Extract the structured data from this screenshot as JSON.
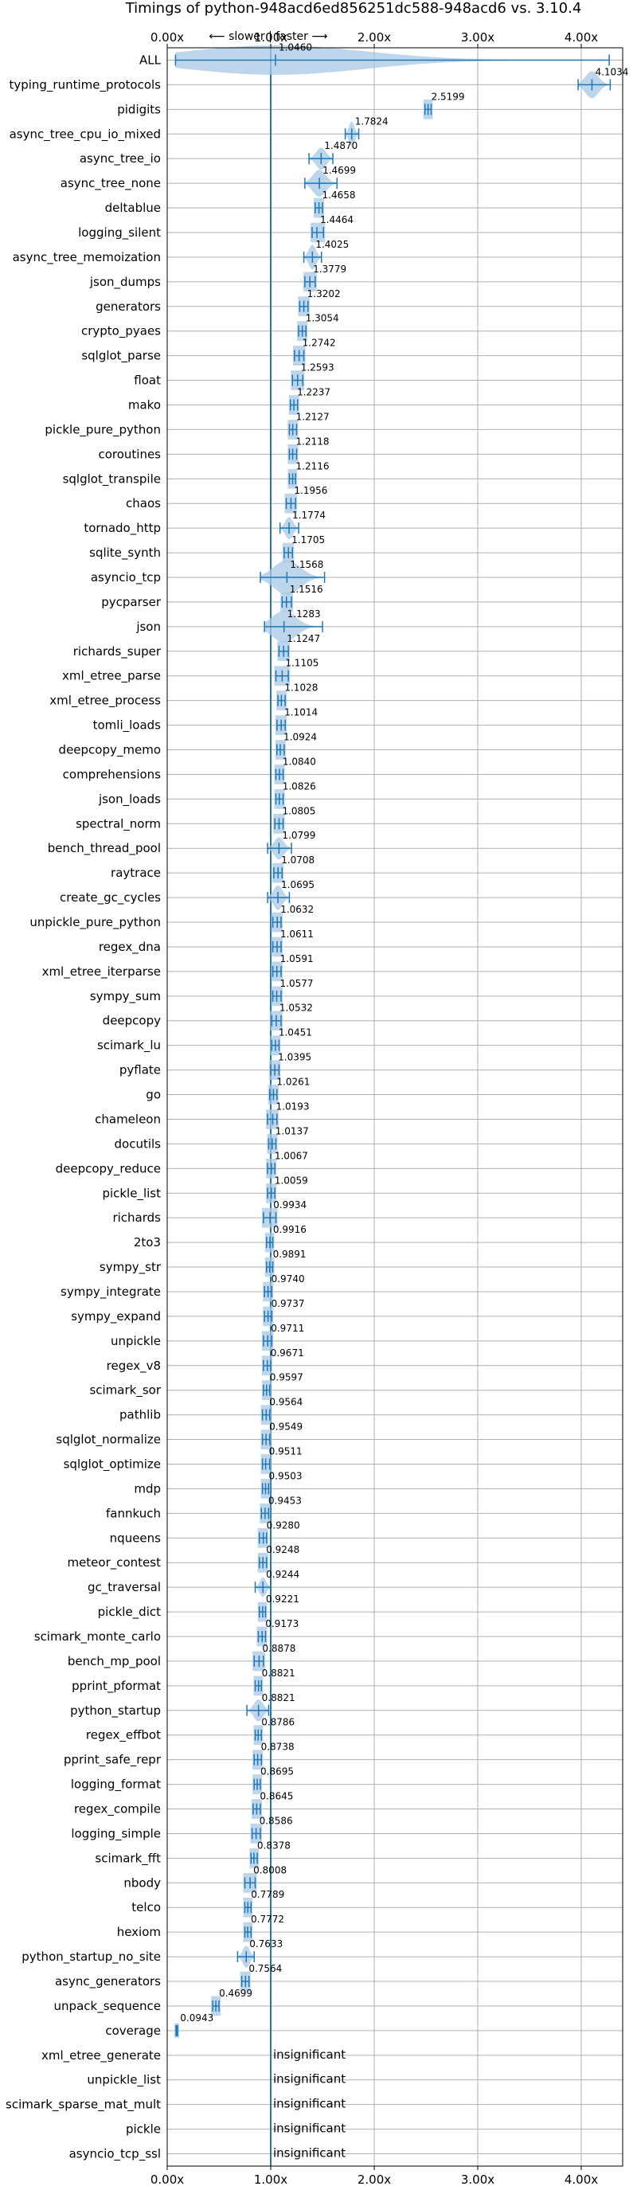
{
  "chart_data": {
    "type": "violin",
    "title": "Timings of python-948acd6ed856251dc588-948acd6 vs. 3.10.4",
    "direction_annotation": "⟵ slower | faster ⟶",
    "xlim": [
      0,
      4.4
    ],
    "reference_x": 1.0,
    "xticks": [
      {
        "value": 0,
        "label": "0.00x"
      },
      {
        "value": 1,
        "label": "1.00x"
      },
      {
        "value": 2,
        "label": "2.00x"
      },
      {
        "value": 3,
        "label": "3.00x"
      },
      {
        "value": 4,
        "label": "4.00x"
      }
    ],
    "insignificant_label": "insignificant",
    "colors": {
      "violin": "#a8c8e4",
      "line": "#1f77b4",
      "median": "#d62728",
      "grid": "#b0b0b0"
    },
    "benchmarks": [
      {
        "name": "ALL",
        "value": 1.046,
        "label": "1.0460",
        "lo": 0.08,
        "hi": 4.27,
        "width": 0.6,
        "sig": true
      },
      {
        "name": "typing_runtime_protocols",
        "value": 4.1034,
        "label": "4.1034",
        "lo": 3.97,
        "hi": 4.28,
        "width": 0.55,
        "sig": true
      },
      {
        "name": "pidigits",
        "value": 2.5199,
        "label": "2.5199",
        "lo": 2.49,
        "hi": 2.55,
        "width": 0.4,
        "sig": true
      },
      {
        "name": "async_tree_cpu_io_mixed",
        "value": 1.7824,
        "label": "1.7824",
        "lo": 1.72,
        "hi": 1.85,
        "width": 0.5,
        "sig": true
      },
      {
        "name": "async_tree_io",
        "value": 1.487,
        "label": "1.4870",
        "lo": 1.37,
        "hi": 1.6,
        "width": 0.45,
        "sig": true
      },
      {
        "name": "async_tree_none",
        "value": 1.4699,
        "label": "1.4699",
        "lo": 1.33,
        "hi": 1.64,
        "width": 0.55,
        "sig": true
      },
      {
        "name": "deltablue",
        "value": 1.4658,
        "label": "1.4658",
        "lo": 1.43,
        "hi": 1.5,
        "width": 0.4,
        "sig": true
      },
      {
        "name": "logging_silent",
        "value": 1.4464,
        "label": "1.4464",
        "lo": 1.4,
        "hi": 1.51,
        "width": 0.4,
        "sig": true
      },
      {
        "name": "async_tree_memoization",
        "value": 1.4025,
        "label": "1.4025",
        "lo": 1.32,
        "hi": 1.49,
        "width": 0.5,
        "sig": true
      },
      {
        "name": "json_dumps",
        "value": 1.3779,
        "label": "1.3779",
        "lo": 1.33,
        "hi": 1.43,
        "width": 0.4,
        "sig": true
      },
      {
        "name": "generators",
        "value": 1.3202,
        "label": "1.3202",
        "lo": 1.28,
        "hi": 1.36,
        "width": 0.4,
        "sig": true
      },
      {
        "name": "crypto_pyaes",
        "value": 1.3054,
        "label": "1.3054",
        "lo": 1.27,
        "hi": 1.34,
        "width": 0.4,
        "sig": true
      },
      {
        "name": "sqlglot_parse",
        "value": 1.2742,
        "label": "1.2742",
        "lo": 1.23,
        "hi": 1.32,
        "width": 0.4,
        "sig": true
      },
      {
        "name": "float",
        "value": 1.2593,
        "label": "1.2593",
        "lo": 1.21,
        "hi": 1.31,
        "width": 0.4,
        "sig": true
      },
      {
        "name": "mako",
        "value": 1.2237,
        "label": "1.2237",
        "lo": 1.19,
        "hi": 1.26,
        "width": 0.4,
        "sig": true
      },
      {
        "name": "pickle_pure_python",
        "value": 1.2127,
        "label": "1.2127",
        "lo": 1.18,
        "hi": 1.25,
        "width": 0.4,
        "sig": true
      },
      {
        "name": "coroutines",
        "value": 1.2118,
        "label": "1.2118",
        "lo": 1.18,
        "hi": 1.25,
        "width": 0.4,
        "sig": true
      },
      {
        "name": "sqlglot_transpile",
        "value": 1.2116,
        "label": "1.2116",
        "lo": 1.18,
        "hi": 1.24,
        "width": 0.4,
        "sig": true
      },
      {
        "name": "chaos",
        "value": 1.1956,
        "label": "1.1956",
        "lo": 1.15,
        "hi": 1.24,
        "width": 0.4,
        "sig": true
      },
      {
        "name": "tornado_http",
        "value": 1.1774,
        "label": "1.1774",
        "lo": 1.09,
        "hi": 1.27,
        "width": 0.45,
        "sig": true
      },
      {
        "name": "sqlite_synth",
        "value": 1.1705,
        "label": "1.1705",
        "lo": 1.13,
        "hi": 1.21,
        "width": 0.4,
        "sig": true
      },
      {
        "name": "asyncio_tcp",
        "value": 1.1568,
        "label": "1.1568",
        "lo": 0.9,
        "hi": 1.52,
        "width": 0.7,
        "sig": true
      },
      {
        "name": "pycparser",
        "value": 1.1516,
        "label": "1.1516",
        "lo": 1.11,
        "hi": 1.2,
        "width": 0.4,
        "sig": true
      },
      {
        "name": "json",
        "value": 1.1283,
        "label": "1.1283",
        "lo": 0.94,
        "hi": 1.5,
        "width": 0.65,
        "sig": true
      },
      {
        "name": "richards_super",
        "value": 1.1247,
        "label": "1.1247",
        "lo": 1.08,
        "hi": 1.17,
        "width": 0.4,
        "sig": true
      },
      {
        "name": "xml_etree_parse",
        "value": 1.1105,
        "label": "1.1105",
        "lo": 1.05,
        "hi": 1.17,
        "width": 0.4,
        "sig": true
      },
      {
        "name": "xml_etree_process",
        "value": 1.1028,
        "label": "1.1028",
        "lo": 1.07,
        "hi": 1.14,
        "width": 0.4,
        "sig": true
      },
      {
        "name": "tomli_loads",
        "value": 1.1014,
        "label": "1.1014",
        "lo": 1.06,
        "hi": 1.14,
        "width": 0.4,
        "sig": true
      },
      {
        "name": "deepcopy_memo",
        "value": 1.0924,
        "label": "1.0924",
        "lo": 1.06,
        "hi": 1.13,
        "width": 0.4,
        "sig": true
      },
      {
        "name": "comprehensions",
        "value": 1.084,
        "label": "1.0840",
        "lo": 1.05,
        "hi": 1.12,
        "width": 0.4,
        "sig": true
      },
      {
        "name": "json_loads",
        "value": 1.0826,
        "label": "1.0826",
        "lo": 1.05,
        "hi": 1.12,
        "width": 0.4,
        "sig": true
      },
      {
        "name": "spectral_norm",
        "value": 1.0805,
        "label": "1.0805",
        "lo": 1.04,
        "hi": 1.12,
        "width": 0.4,
        "sig": true
      },
      {
        "name": "bench_thread_pool",
        "value": 1.0799,
        "label": "1.0799",
        "lo": 0.97,
        "hi": 1.2,
        "width": 0.45,
        "sig": true
      },
      {
        "name": "raytrace",
        "value": 1.0708,
        "label": "1.0708",
        "lo": 1.03,
        "hi": 1.11,
        "width": 0.4,
        "sig": true
      },
      {
        "name": "create_gc_cycles",
        "value": 1.0695,
        "label": "1.0695",
        "lo": 0.97,
        "hi": 1.18,
        "width": 0.5,
        "sig": true
      },
      {
        "name": "unpickle_pure_python",
        "value": 1.0632,
        "label": "1.0632",
        "lo": 1.02,
        "hi": 1.1,
        "width": 0.4,
        "sig": true
      },
      {
        "name": "regex_dna",
        "value": 1.0611,
        "label": "1.0611",
        "lo": 1.02,
        "hi": 1.1,
        "width": 0.4,
        "sig": true
      },
      {
        "name": "xml_etree_iterparse",
        "value": 1.0591,
        "label": "1.0591",
        "lo": 1.02,
        "hi": 1.1,
        "width": 0.4,
        "sig": true
      },
      {
        "name": "sympy_sum",
        "value": 1.0577,
        "label": "1.0577",
        "lo": 1.02,
        "hi": 1.1,
        "width": 0.4,
        "sig": true
      },
      {
        "name": "deepcopy",
        "value": 1.0532,
        "label": "1.0532",
        "lo": 1.01,
        "hi": 1.1,
        "width": 0.4,
        "sig": true
      },
      {
        "name": "scimark_lu",
        "value": 1.0451,
        "label": "1.0451",
        "lo": 1.01,
        "hi": 1.08,
        "width": 0.4,
        "sig": true
      },
      {
        "name": "pyflate",
        "value": 1.0395,
        "label": "1.0395",
        "lo": 1.0,
        "hi": 1.08,
        "width": 0.4,
        "sig": true
      },
      {
        "name": "go",
        "value": 1.0261,
        "label": "1.0261",
        "lo": 0.99,
        "hi": 1.06,
        "width": 0.4,
        "sig": true
      },
      {
        "name": "chameleon",
        "value": 1.0193,
        "label": "1.0193",
        "lo": 0.97,
        "hi": 1.06,
        "width": 0.4,
        "sig": true
      },
      {
        "name": "docutils",
        "value": 1.0137,
        "label": "1.0137",
        "lo": 0.98,
        "hi": 1.05,
        "width": 0.4,
        "sig": true
      },
      {
        "name": "deepcopy_reduce",
        "value": 1.0067,
        "label": "1.0067",
        "lo": 0.97,
        "hi": 1.04,
        "width": 0.4,
        "sig": true
      },
      {
        "name": "pickle_list",
        "value": 1.0059,
        "label": "1.0059",
        "lo": 0.97,
        "hi": 1.04,
        "width": 0.4,
        "sig": true
      },
      {
        "name": "richards",
        "value": 0.9934,
        "label": "0.9934",
        "lo": 0.93,
        "hi": 1.05,
        "width": 0.4,
        "sig": true
      },
      {
        "name": "2to3",
        "value": 0.9916,
        "label": "0.9916",
        "lo": 0.96,
        "hi": 1.02,
        "width": 0.4,
        "sig": true
      },
      {
        "name": "sympy_str",
        "value": 0.9891,
        "label": "0.9891",
        "lo": 0.96,
        "hi": 1.02,
        "width": 0.4,
        "sig": true
      },
      {
        "name": "sympy_integrate",
        "value": 0.974,
        "label": "0.9740",
        "lo": 0.94,
        "hi": 1.01,
        "width": 0.4,
        "sig": true
      },
      {
        "name": "sympy_expand",
        "value": 0.9737,
        "label": "0.9737",
        "lo": 0.94,
        "hi": 1.01,
        "width": 0.4,
        "sig": true
      },
      {
        "name": "unpickle",
        "value": 0.9711,
        "label": "0.9711",
        "lo": 0.93,
        "hi": 1.01,
        "width": 0.4,
        "sig": true
      },
      {
        "name": "regex_v8",
        "value": 0.9671,
        "label": "0.9671",
        "lo": 0.93,
        "hi": 1.0,
        "width": 0.4,
        "sig": true
      },
      {
        "name": "scimark_sor",
        "value": 0.9597,
        "label": "0.9597",
        "lo": 0.93,
        "hi": 0.99,
        "width": 0.4,
        "sig": true
      },
      {
        "name": "pathlib",
        "value": 0.9564,
        "label": "0.9564",
        "lo": 0.92,
        "hi": 0.99,
        "width": 0.4,
        "sig": true
      },
      {
        "name": "sqlglot_normalize",
        "value": 0.9549,
        "label": "0.9549",
        "lo": 0.92,
        "hi": 0.99,
        "width": 0.4,
        "sig": true
      },
      {
        "name": "sqlglot_optimize",
        "value": 0.9511,
        "label": "0.9511",
        "lo": 0.92,
        "hi": 0.99,
        "width": 0.4,
        "sig": true
      },
      {
        "name": "mdp",
        "value": 0.9503,
        "label": "0.9503",
        "lo": 0.92,
        "hi": 0.98,
        "width": 0.4,
        "sig": true
      },
      {
        "name": "fannkuch",
        "value": 0.9453,
        "label": "0.9453",
        "lo": 0.91,
        "hi": 0.98,
        "width": 0.4,
        "sig": true
      },
      {
        "name": "nqueens",
        "value": 0.928,
        "label": "0.9280",
        "lo": 0.89,
        "hi": 0.96,
        "width": 0.4,
        "sig": true
      },
      {
        "name": "meteor_contest",
        "value": 0.9248,
        "label": "0.9248",
        "lo": 0.89,
        "hi": 0.96,
        "width": 0.4,
        "sig": true
      },
      {
        "name": "gc_traversal",
        "value": 0.9244,
        "label": "0.9244",
        "lo": 0.85,
        "hi": 1.0,
        "width": 0.4,
        "sig": true
      },
      {
        "name": "pickle_dict",
        "value": 0.9221,
        "label": "0.9221",
        "lo": 0.89,
        "hi": 0.95,
        "width": 0.4,
        "sig": true
      },
      {
        "name": "scimark_monte_carlo",
        "value": 0.9173,
        "label": "0.9173",
        "lo": 0.88,
        "hi": 0.95,
        "width": 0.4,
        "sig": true
      },
      {
        "name": "bench_mp_pool",
        "value": 0.8878,
        "label": "0.8878",
        "lo": 0.84,
        "hi": 0.93,
        "width": 0.4,
        "sig": true
      },
      {
        "name": "pprint_pformat",
        "value": 0.8821,
        "label": "0.8821",
        "lo": 0.85,
        "hi": 0.91,
        "width": 0.4,
        "sig": true
      },
      {
        "name": "python_startup",
        "value": 0.8821,
        "label": "0.8821",
        "lo": 0.77,
        "hi": 0.98,
        "width": 0.45,
        "sig": true
      },
      {
        "name": "regex_effbot",
        "value": 0.8786,
        "label": "0.8786",
        "lo": 0.85,
        "hi": 0.91,
        "width": 0.4,
        "sig": true
      },
      {
        "name": "pprint_safe_repr",
        "value": 0.8738,
        "label": "0.8738",
        "lo": 0.84,
        "hi": 0.91,
        "width": 0.4,
        "sig": true
      },
      {
        "name": "logging_format",
        "value": 0.8695,
        "label": "0.8695",
        "lo": 0.84,
        "hi": 0.9,
        "width": 0.4,
        "sig": true
      },
      {
        "name": "regex_compile",
        "value": 0.8645,
        "label": "0.8645",
        "lo": 0.83,
        "hi": 0.9,
        "width": 0.4,
        "sig": true
      },
      {
        "name": "logging_simple",
        "value": 0.8586,
        "label": "0.8586",
        "lo": 0.82,
        "hi": 0.9,
        "width": 0.4,
        "sig": true
      },
      {
        "name": "scimark_fft",
        "value": 0.8378,
        "label": "0.8378",
        "lo": 0.81,
        "hi": 0.87,
        "width": 0.4,
        "sig": true
      },
      {
        "name": "nbody",
        "value": 0.8008,
        "label": "0.8008",
        "lo": 0.75,
        "hi": 0.85,
        "width": 0.4,
        "sig": true
      },
      {
        "name": "telco",
        "value": 0.7789,
        "label": "0.7789",
        "lo": 0.75,
        "hi": 0.81,
        "width": 0.4,
        "sig": true
      },
      {
        "name": "hexiom",
        "value": 0.7772,
        "label": "0.7772",
        "lo": 0.75,
        "hi": 0.81,
        "width": 0.4,
        "sig": true
      },
      {
        "name": "python_startup_no_site",
        "value": 0.7633,
        "label": "0.7633",
        "lo": 0.68,
        "hi": 0.84,
        "width": 0.45,
        "sig": true
      },
      {
        "name": "async_generators",
        "value": 0.7564,
        "label": "0.7564",
        "lo": 0.72,
        "hi": 0.79,
        "width": 0.4,
        "sig": true
      },
      {
        "name": "unpack_sequence",
        "value": 0.4699,
        "label": "0.4699",
        "lo": 0.44,
        "hi": 0.5,
        "width": 0.4,
        "sig": true
      },
      {
        "name": "coverage",
        "value": 0.0943,
        "label": "0.0943",
        "lo": 0.085,
        "hi": 0.1,
        "width": 0.3,
        "sig": true
      },
      {
        "name": "xml_etree_generate",
        "value": 1.0,
        "label": "",
        "lo": 1.0,
        "hi": 1.0,
        "width": 0,
        "sig": false
      },
      {
        "name": "unpickle_list",
        "value": 1.0,
        "label": "",
        "lo": 1.0,
        "hi": 1.0,
        "width": 0,
        "sig": false
      },
      {
        "name": "scimark_sparse_mat_mult",
        "value": 1.0,
        "label": "",
        "lo": 1.0,
        "hi": 1.0,
        "width": 0,
        "sig": false
      },
      {
        "name": "pickle",
        "value": 1.0,
        "label": "",
        "lo": 1.0,
        "hi": 1.0,
        "width": 0,
        "sig": false
      },
      {
        "name": "asyncio_tcp_ssl",
        "value": 1.0,
        "label": "",
        "lo": 1.0,
        "hi": 1.0,
        "width": 0,
        "sig": false
      }
    ]
  }
}
